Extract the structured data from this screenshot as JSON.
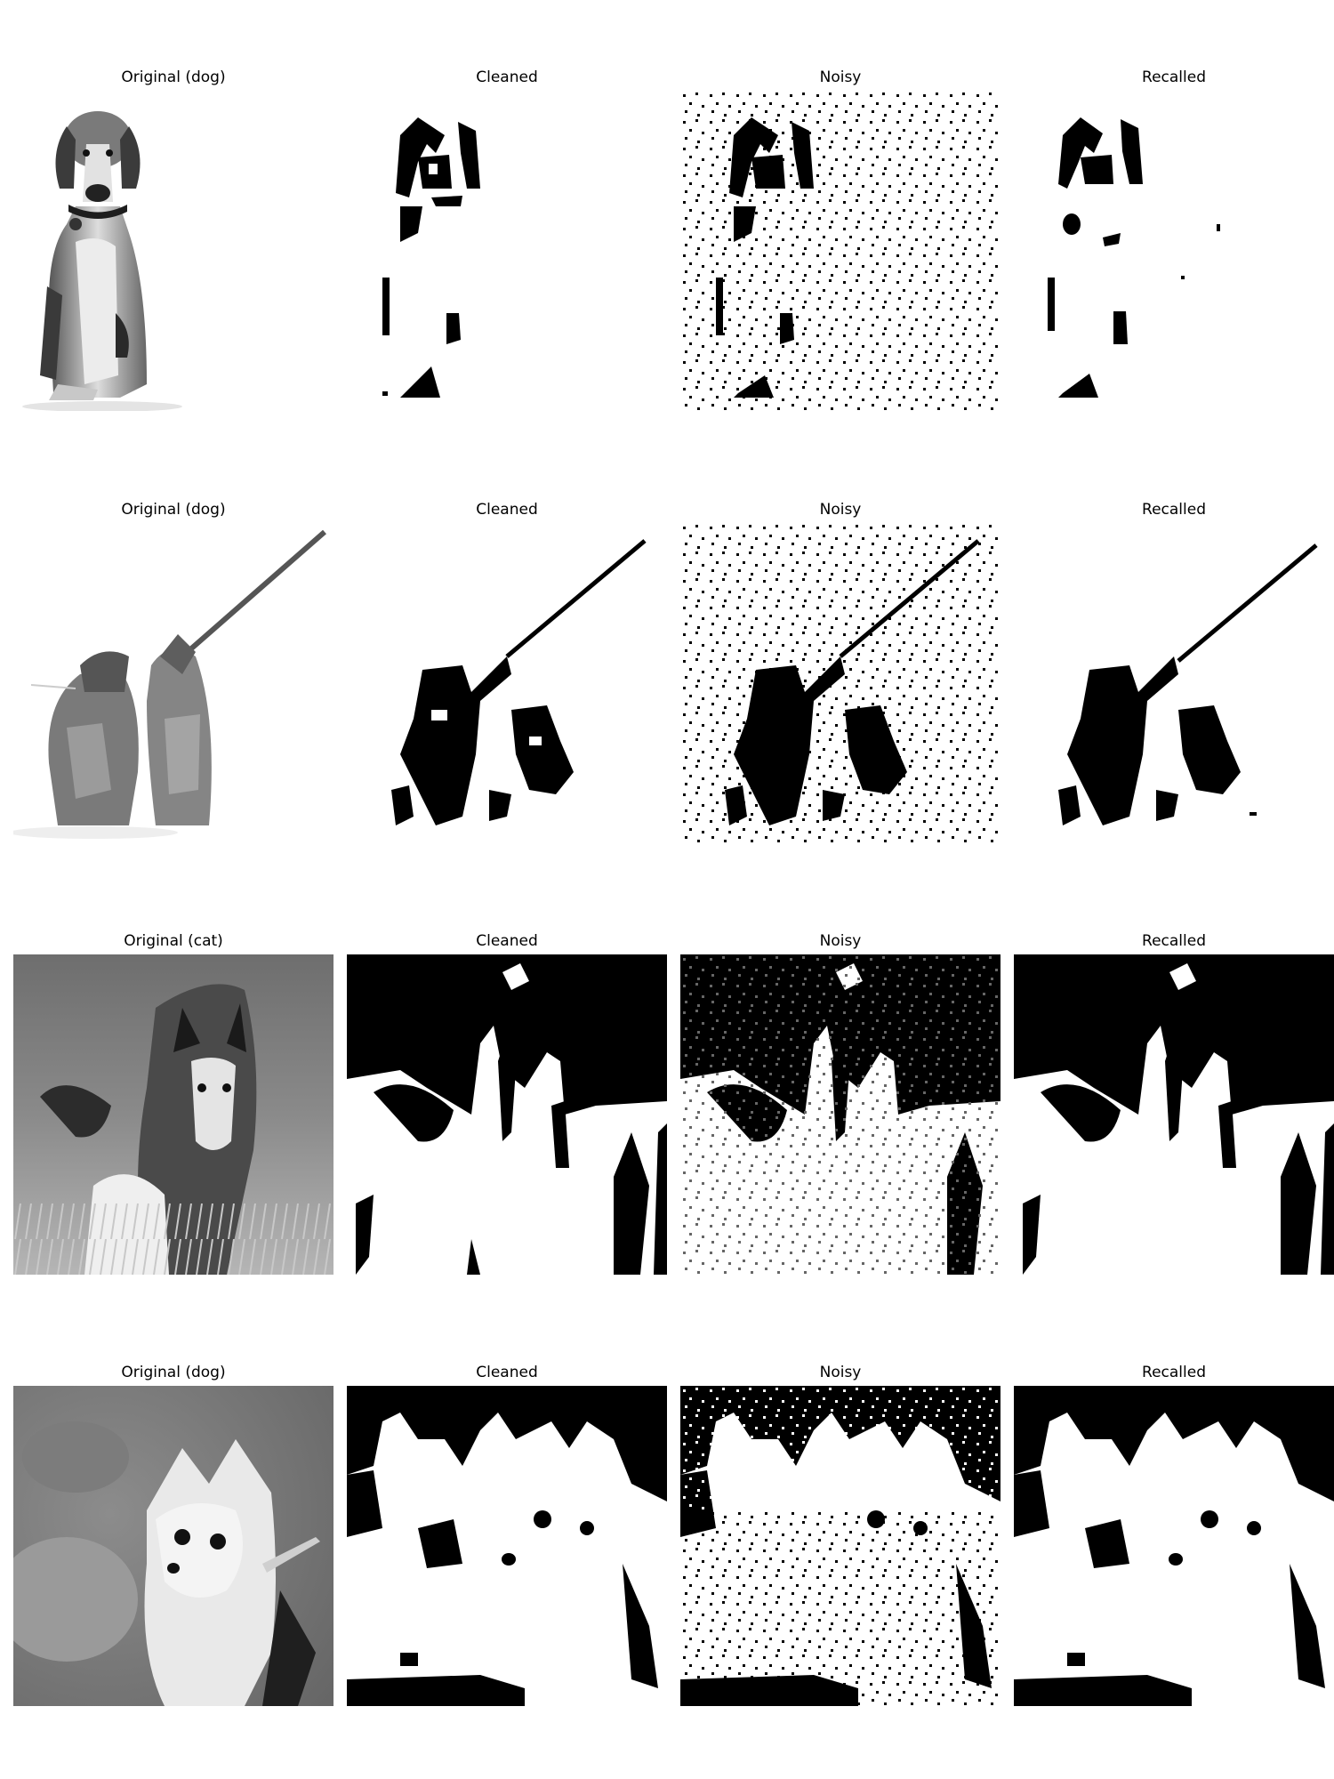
{
  "figure": {
    "rows": [
      {
        "titles": [
          "Original (dog)",
          "Cleaned",
          "Noisy",
          "Recalled"
        ],
        "subjects": [
          "beagle sitting (grayscale)",
          "binary silhouette",
          "binary silhouette with noise",
          "binary silhouette recalled"
        ]
      },
      {
        "titles": [
          "Original (dog)",
          "Cleaned",
          "Noisy",
          "Recalled"
        ],
        "subjects": [
          "two puppies with leash (grayscale)",
          "binary silhouette",
          "binary silhouette with noise",
          "binary silhouette recalled"
        ]
      },
      {
        "titles": [
          "Original (cat)",
          "Cleaned",
          "Noisy",
          "Recalled"
        ],
        "subjects": [
          "cat in grass (grayscale)",
          "binary image",
          "binary image with noise",
          "binary image recalled"
        ]
      },
      {
        "titles": [
          "Original (dog)",
          "Cleaned",
          "Noisy",
          "Recalled"
        ],
        "subjects": [
          "fluffy dog (grayscale)",
          "binary image",
          "binary image with noise",
          "binary image recalled"
        ]
      }
    ]
  }
}
